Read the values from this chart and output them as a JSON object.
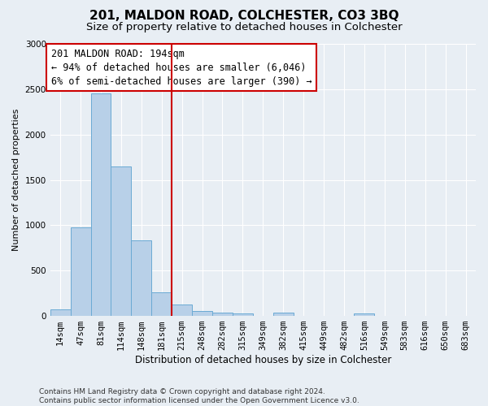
{
  "title": "201, MALDON ROAD, COLCHESTER, CO3 3BQ",
  "subtitle": "Size of property relative to detached houses in Colchester",
  "xlabel": "Distribution of detached houses by size in Colchester",
  "ylabel": "Number of detached properties",
  "bin_labels": [
    "14sqm",
    "47sqm",
    "81sqm",
    "114sqm",
    "148sqm",
    "181sqm",
    "215sqm",
    "248sqm",
    "282sqm",
    "315sqm",
    "349sqm",
    "382sqm",
    "415sqm",
    "449sqm",
    "482sqm",
    "516sqm",
    "549sqm",
    "583sqm",
    "616sqm",
    "650sqm",
    "683sqm"
  ],
  "bar_values": [
    75,
    980,
    2450,
    1650,
    830,
    260,
    130,
    55,
    40,
    30,
    0,
    40,
    0,
    0,
    0,
    25,
    0,
    0,
    0,
    0,
    0
  ],
  "bar_color": "#b8d0e8",
  "bar_edge_color": "#6aaad4",
  "background_color": "#e8eef4",
  "grid_color": "#ffffff",
  "vline_color": "#cc0000",
  "annotation_text": "201 MALDON ROAD: 194sqm\n← 94% of detached houses are smaller (6,046)\n6% of semi-detached houses are larger (390) →",
  "annotation_box_color": "#ffffff",
  "annotation_box_edge": "#cc0000",
  "ylim": [
    0,
    3000
  ],
  "yticks": [
    0,
    500,
    1000,
    1500,
    2000,
    2500,
    3000
  ],
  "footer_text": "Contains HM Land Registry data © Crown copyright and database right 2024.\nContains public sector information licensed under the Open Government Licence v3.0.",
  "title_fontsize": 11,
  "subtitle_fontsize": 9.5,
  "xlabel_fontsize": 8.5,
  "ylabel_fontsize": 8,
  "tick_fontsize": 7.5,
  "annotation_fontsize": 8.5,
  "footer_fontsize": 6.5
}
